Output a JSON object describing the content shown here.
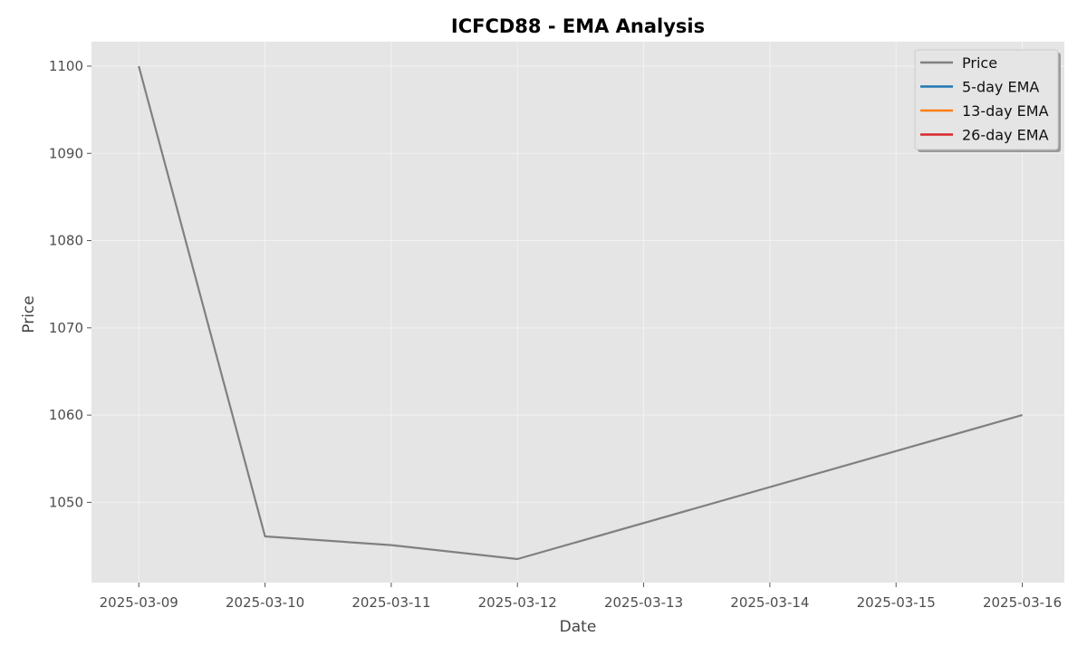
{
  "chart_data": {
    "type": "line",
    "title": "ICFCD88 - EMA Analysis",
    "xlabel": "Date",
    "ylabel": "Price",
    "x": [
      "2025-03-09",
      "2025-03-10",
      "2025-03-11",
      "2025-03-12",
      "2025-03-13",
      "2025-03-14",
      "2025-03-15",
      "2025-03-16"
    ],
    "xlim": [
      "2025-03-08T15:00",
      "2025-03-16T08:00"
    ],
    "ylim": [
      1040.8,
      1102.8
    ],
    "yticks": [
      1050,
      1060,
      1070,
      1080,
      1090,
      1100
    ],
    "grid": true,
    "legend_position": "top-right",
    "series": [
      {
        "name": "Price",
        "color": "#808080",
        "points": [
          {
            "x": "2025-03-09",
            "y": 1100.0
          },
          {
            "x": "2025-03-10",
            "y": 1046.1
          },
          {
            "x": "2025-03-11",
            "y": 1045.1
          },
          {
            "x": "2025-03-12",
            "y": 1043.5
          },
          {
            "x": "2025-03-16",
            "y": 1060.0
          }
        ]
      },
      {
        "name": "5-day EMA",
        "color": "#1f77b4",
        "points": []
      },
      {
        "name": "13-day EMA",
        "color": "#ff7f0e",
        "points": []
      },
      {
        "name": "26-day EMA",
        "color": "#d62728",
        "points": []
      }
    ]
  }
}
